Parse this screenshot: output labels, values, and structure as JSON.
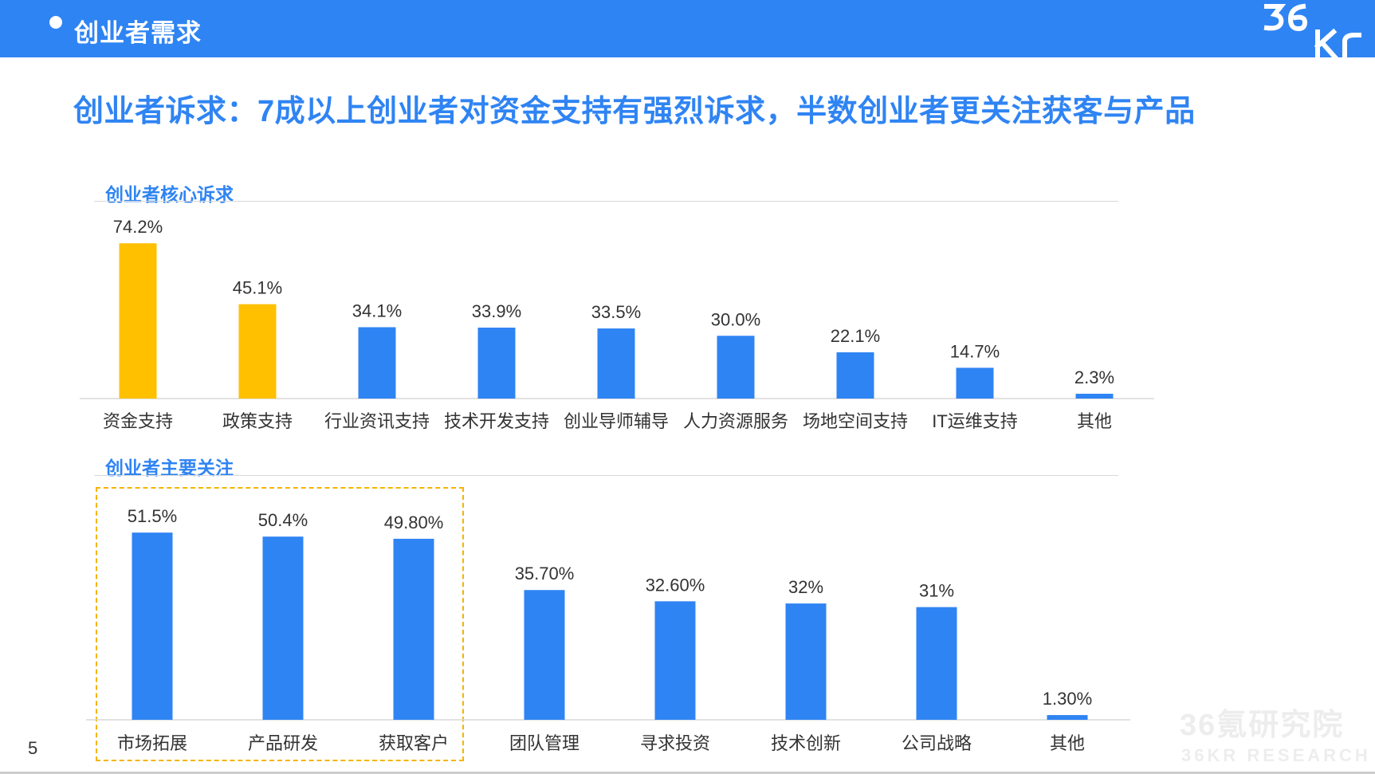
{
  "header": {
    "section_title": "创业者需求",
    "logo_text": "36Kr"
  },
  "headline": "创业者诉求：7成以上创业者对资金支持有强烈诉求，半数创业者更关注获客与产品",
  "page_number": "5",
  "watermark": {
    "cn": "36氪研究院",
    "en": "36KR RESEARCH"
  },
  "colors": {
    "brand_blue": "#2f84f3",
    "highlight_gold": "#ffc000",
    "bar_blue": "#2f84f3",
    "box_gold": "#f5b400"
  },
  "chart_data": [
    {
      "type": "bar",
      "title": "创业者核心诉求",
      "categories": [
        "资金支持",
        "政策支持",
        "行业资讯支持",
        "技术开发支持",
        "创业导师辅导",
        "人力资源服务",
        "场地空间支持",
        "IT运维支持",
        "其他"
      ],
      "values": [
        74.2,
        45.1,
        34.1,
        33.9,
        33.5,
        30.0,
        22.1,
        14.7,
        2.3
      ],
      "labels": [
        "74.2%",
        "45.1%",
        "34.1%",
        "33.9%",
        "33.5%",
        "30.0%",
        "22.1%",
        "14.7%",
        "2.3%"
      ],
      "highlighted": [
        true,
        true,
        false,
        false,
        false,
        false,
        false,
        false,
        false
      ],
      "ylim": [
        0,
        80
      ],
      "grid": false,
      "legend": "none"
    },
    {
      "type": "bar",
      "title": "创业者主要关注",
      "categories": [
        "市场拓展",
        "产品研发",
        "获取客户",
        "团队管理",
        "寻求投资",
        "技术创新",
        "公司战略",
        "其他"
      ],
      "values": [
        51.5,
        50.4,
        49.8,
        35.7,
        32.6,
        32,
        31,
        1.3
      ],
      "labels": [
        "51.5%",
        "50.4%",
        "49.80%",
        "35.70%",
        "32.60%",
        "32%",
        "31%",
        "1.30%"
      ],
      "highlighted": [
        false,
        false,
        false,
        false,
        false,
        false,
        false,
        false
      ],
      "ylim": [
        0,
        55
      ],
      "grid": false,
      "legend": "none",
      "dashed_box_around": [
        "市场拓展",
        "产品研发",
        "获取客户"
      ]
    }
  ]
}
